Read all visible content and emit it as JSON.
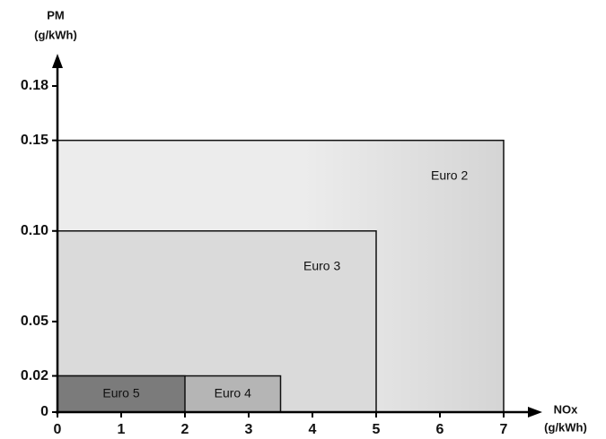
{
  "chart_data": {
    "type": "rect",
    "ylabel": [
      "PM",
      "(g/kWh)"
    ],
    "xlabel": [
      "NOx",
      "(g/kWh)"
    ],
    "xlim": [
      0,
      7
    ],
    "ylim": [
      0,
      0.18
    ],
    "xticks": [
      0,
      1,
      2,
      3,
      4,
      5,
      6,
      7
    ],
    "yticks": [
      0,
      0.02,
      0.05,
      {
        "value": 0.1,
        "label": "0.10"
      },
      0.15,
      0.18
    ],
    "series": [
      {
        "name": "Euro 2",
        "color": "#ececec",
        "nox": 7,
        "pm": 0.15
      },
      {
        "name": "Euro 3",
        "color": "#dadada",
        "nox": 5,
        "pm": 0.1
      },
      {
        "name": "Euro 4",
        "color": "#b5b5b5",
        "nox": 3.5,
        "pm": 0.02
      },
      {
        "name": "Euro 5",
        "color": "#7b7b7b",
        "nox": 2,
        "pm": 0.02
      }
    ]
  }
}
